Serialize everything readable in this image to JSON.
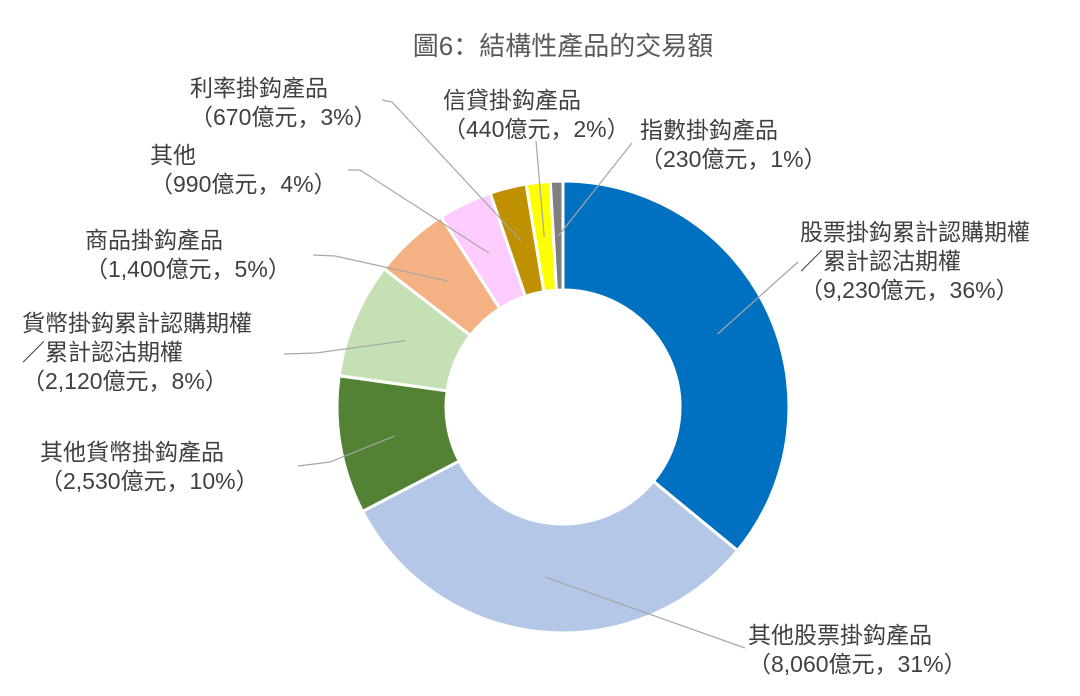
{
  "chart_data": {
    "type": "pie",
    "donut": true,
    "title": "圖6：結構性產品的交易額",
    "slices": [
      {
        "name": "股票掛鈎累計認購期權／累計認沽期權",
        "value": 9230,
        "percent": 36,
        "label": "（9,230億元，36%）",
        "color": "#0070C0"
      },
      {
        "name": "其他股票掛鈎產品",
        "value": 8060,
        "percent": 31,
        "label": "（8,060億元，31%）",
        "color": "#B4C7E7"
      },
      {
        "name": "其他貨幣掛鈎產品",
        "value": 2530,
        "percent": 10,
        "label": "（2,530億元，10%）",
        "color": "#548235"
      },
      {
        "name": "貨幣掛鈎累計認購期權／累計認沽期權",
        "value": 2120,
        "percent": 8,
        "label": "（2,120億元，8%）",
        "color": "#C5E0B4"
      },
      {
        "name": "商品掛鈎產品",
        "value": 1400,
        "percent": 5,
        "label": "（1,400億元，5%）",
        "color": "#F4B183"
      },
      {
        "name": "其他",
        "value": 990,
        "percent": 4,
        "label": "（990億元，4%）",
        "color": "#FFCCFF"
      },
      {
        "name": "利率掛鈎產品",
        "value": 670,
        "percent": 3,
        "label": "（670億元，3%）",
        "color": "#BF9000"
      },
      {
        "name": "信貸掛鈎產品",
        "value": 440,
        "percent": 2,
        "label": "（440億元，2%）",
        "color": "#FFFF00"
      },
      {
        "name": "指數掛鈎產品",
        "value": 230,
        "percent": 1,
        "label": "（230億元，1%）",
        "color": "#7F7F7F"
      }
    ]
  }
}
